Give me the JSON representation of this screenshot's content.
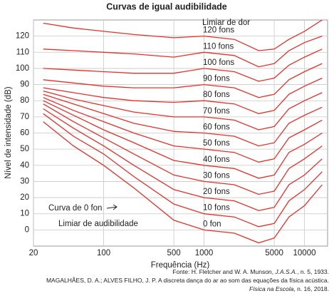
{
  "chart_data": {
    "type": "line",
    "title": "Curvas de igual audibilidade",
    "x_label": "Frequência (Hz)",
    "y_label": "Nível de intensidade (dB)",
    "x_scale": "log",
    "xlim": [
      20,
      17000
    ],
    "xticks": [
      20,
      100,
      500,
      1000,
      5000,
      10000
    ],
    "ylim": [
      -10,
      130
    ],
    "yticks": [
      0,
      10,
      20,
      30,
      40,
      50,
      60,
      70,
      80,
      90,
      100,
      110,
      120
    ],
    "grid": true,
    "x": [
      25,
      50,
      100,
      200,
      500,
      1000,
      2000,
      3500,
      5000,
      7000,
      10000,
      15000
    ],
    "series": [
      {
        "name": "0 fon",
        "color": "#e8302a",
        "values": [
          67,
          52,
          40,
          26,
          6,
          0,
          -2,
          -8,
          -5,
          8,
          15,
          28
        ]
      },
      {
        "name": "10 fons",
        "color": "#e8302a",
        "values": [
          72,
          58,
          47,
          33,
          16,
          10,
          8,
          2,
          4,
          18,
          25,
          36
        ]
      },
      {
        "name": "20 fons",
        "color": "#e8302a",
        "values": [
          75,
          63,
          52,
          40,
          25,
          20,
          18,
          12,
          14,
          28,
          34,
          44
        ]
      },
      {
        "name": "30 fons",
        "color": "#e8302a",
        "values": [
          78,
          67,
          57,
          47,
          34,
          30,
          28,
          22,
          24,
          38,
          44,
          52
        ]
      },
      {
        "name": "40 fons",
        "color": "#e8302a",
        "values": [
          80,
          71,
          62,
          54,
          43,
          40,
          38,
          32,
          34,
          48,
          53,
          60
        ]
      },
      {
        "name": "50 fons",
        "color": "#e8302a",
        "values": [
          82,
          74,
          67,
          60,
          52,
          50,
          48,
          42,
          44,
          57,
          62,
          68
        ]
      },
      {
        "name": "60 fons",
        "color": "#e8302a",
        "values": [
          84,
          78,
          72,
          66,
          61,
          60,
          58,
          52,
          54,
          66,
          71,
          76
        ]
      },
      {
        "name": "70 fons",
        "color": "#e8302a",
        "values": [
          86,
          81,
          77,
          73,
          70,
          70,
          68,
          62,
          64,
          75,
          80,
          85
        ]
      },
      {
        "name": "80 fons",
        "color": "#e8302a",
        "values": [
          88,
          85,
          82,
          80,
          79,
          80,
          78,
          72,
          74,
          84,
          89,
          94
        ]
      },
      {
        "name": "90 fons",
        "color": "#e8302a",
        "values": [
          93,
          91,
          89,
          88,
          88,
          90,
          88,
          82,
          84,
          93,
          98,
          103
        ]
      },
      {
        "name": "100 fons",
        "color": "#e8302a",
        "values": [
          100,
          99,
          98,
          97,
          97,
          100,
          98,
          92,
          94,
          102,
          107,
          112
        ]
      },
      {
        "name": "110 fons",
        "color": "#e8302a",
        "values": [
          112,
          111,
          110,
          109,
          107,
          110,
          108,
          101,
          103,
          111,
          116,
          120
        ]
      },
      {
        "name": "120 fons",
        "color": "#e8302a",
        "values": [
          128,
          125,
          123,
          121,
          119,
          120,
          118,
          111,
          112,
          118,
          123,
          130
        ]
      }
    ],
    "annotations": {
      "pain": "Limiar de dor",
      "zero_curve": "Curva de 0 fon",
      "hearing": "Limiar de audibilidade"
    },
    "source": [
      [
        "Fonte: H. Fletcher and W. A. Munson, ",
        "J.A.S.A.",
        ", n. 5, 1933."
      ],
      [
        "MAGALHÃES, D. A.; ALVES FILHO, J. P. A discreta dança do ar ao som das equações da física acústica."
      ],
      [
        "Física na Escola",
        ", n. 16, 2018."
      ]
    ]
  }
}
